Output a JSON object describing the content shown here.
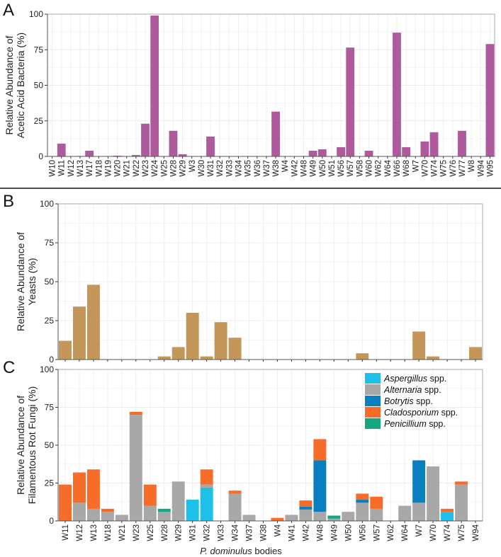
{
  "chart_data": [
    {
      "panel_label": "A",
      "type": "bar",
      "ylabel": [
        "Relative Abundance of",
        "Acetic Acid Bacteria (%)"
      ],
      "ylim": [
        0,
        100
      ],
      "yticks": [
        0,
        25,
        50,
        75,
        100
      ],
      "grid": true,
      "color": "#b05a9e",
      "categories": [
        "W10",
        "W11",
        "W12",
        "W13",
        "W17",
        "W18",
        "W19",
        "W20",
        "W21",
        "W22",
        "W23",
        "W24",
        "W25",
        "W28",
        "W29",
        "W3",
        "W30",
        "W31",
        "W32",
        "W33",
        "W34",
        "W35",
        "W36",
        "W37",
        "W38",
        "W4",
        "W42",
        "W48",
        "W49",
        "W50",
        "W51",
        "W56",
        "W57",
        "W58",
        "W60",
        "W62",
        "W64",
        "W66",
        "W68",
        "W7",
        "W70",
        "W74",
        "W75",
        "W76",
        "W77",
        "W8",
        "W94",
        "W95"
      ],
      "values": [
        0,
        9,
        0,
        0.3,
        4,
        0,
        0,
        0.5,
        0,
        1,
        23,
        99,
        0,
        18,
        1.5,
        0,
        0,
        14,
        0,
        0,
        0,
        0,
        0,
        0,
        31.5,
        0,
        0,
        0.3,
        4,
        5,
        0,
        6.5,
        76.5,
        0,
        4,
        0,
        0,
        87,
        6.5,
        0,
        10.5,
        17,
        0,
        0,
        18,
        0,
        0,
        79
      ]
    },
    {
      "panel_label": "B",
      "type": "bar",
      "ylabel": [
        "Relative Abundance of",
        "Yeasts (%)"
      ],
      "ylim": [
        0,
        100
      ],
      "yticks": [
        0,
        25,
        50,
        75,
        100
      ],
      "grid": true,
      "color": "#c3975a",
      "categories": [
        "W11",
        "W12",
        "W13",
        "W18",
        "W21",
        "W23",
        "W25",
        "W28",
        "W29",
        "W31",
        "W32",
        "W33",
        "W34",
        "W37",
        "W38",
        "W4",
        "W41",
        "W42",
        "W48",
        "W49",
        "W50",
        "W56",
        "W57",
        "W62",
        "W64",
        "W7",
        "W70",
        "W74",
        "W75",
        "W94"
      ],
      "values": [
        12,
        34,
        48,
        0,
        0,
        0,
        0,
        2,
        8,
        30,
        2,
        24,
        14,
        0,
        0,
        0,
        0,
        0,
        0,
        0,
        0,
        4,
        0,
        0,
        0,
        18,
        2,
        0,
        0,
        8
      ]
    },
    {
      "panel_label": "C",
      "type": "stacked-bar",
      "ylabel": [
        "Relative Abundance of",
        "Filamentous Rot Fungi (%)"
      ],
      "xlabel_italic": "P. dominulus",
      "xlabel_rest": " bodies",
      "ylim": [
        0,
        100
      ],
      "yticks": [
        0,
        25,
        50,
        75,
        100
      ],
      "grid": true,
      "legend_position": "top-right",
      "categories": [
        "W11",
        "W12",
        "W13",
        "W18",
        "W21",
        "W23",
        "W25",
        "W28",
        "W29",
        "W31",
        "W32",
        "W33",
        "W34",
        "W37",
        "W38",
        "W4",
        "W41",
        "W42",
        "W48",
        "W49",
        "W50",
        "W56",
        "W57",
        "W62",
        "W64",
        "W7",
        "W70",
        "W74",
        "W75",
        "W94"
      ],
      "series": [
        {
          "name": "Aspergillus",
          "suffix": " spp.",
          "color": "#1ec0ea",
          "values": [
            0,
            0,
            0,
            0,
            0,
            0,
            0,
            0,
            0,
            14,
            22,
            0,
            0,
            0,
            0,
            0,
            0,
            0,
            0,
            0,
            0,
            0,
            0,
            0,
            0,
            0,
            0,
            6,
            0,
            0
          ]
        },
        {
          "name": "Alternaria",
          "suffix": " spp.",
          "color": "#a8a8a8",
          "values": [
            0,
            12,
            8,
            6,
            4,
            70,
            10,
            6,
            26,
            0,
            2,
            0,
            18,
            4,
            0,
            0,
            4,
            7.5,
            6,
            1.5,
            6,
            12,
            8,
            0,
            10,
            12,
            36,
            0,
            24,
            0
          ]
        },
        {
          "name": "Botrytis",
          "suffix": " spp.",
          "color": "#0a7fbf",
          "values": [
            0,
            0,
            0,
            0,
            0,
            0,
            0,
            0,
            0,
            0,
            0,
            0,
            0,
            0,
            0,
            0,
            0,
            2,
            34,
            0,
            0,
            2,
            0,
            0,
            0,
            28,
            0,
            0,
            0,
            0
          ]
        },
        {
          "name": "Cladosporium",
          "suffix": " spp.",
          "color": "#f86c2a",
          "values": [
            24,
            20,
            26,
            2,
            0,
            2,
            14,
            0,
            0,
            0,
            10,
            0,
            2,
            0,
            0,
            2,
            0,
            4,
            14,
            0,
            0,
            4,
            8,
            0,
            0,
            0,
            0,
            2,
            2,
            0
          ]
        },
        {
          "name": "Penicillium",
          "suffix": " spp.",
          "color": "#14a67f",
          "values": [
            0,
            0,
            0,
            0,
            0,
            0,
            0,
            2,
            0,
            0,
            0,
            0,
            0,
            0,
            0,
            0,
            0,
            0,
            0,
            2,
            0,
            0,
            0,
            0,
            0,
            0,
            0,
            0,
            0,
            0
          ]
        }
      ]
    }
  ]
}
